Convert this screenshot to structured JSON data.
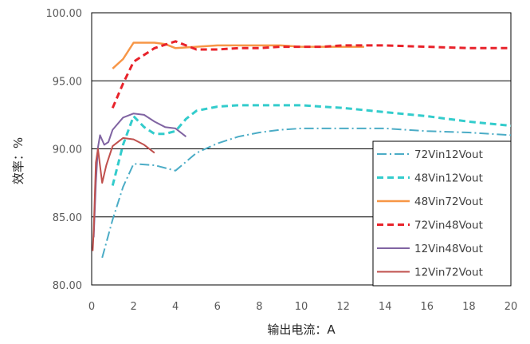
{
  "chart_data": {
    "type": "line",
    "xlabel": "输出电流：A",
    "ylabel": "效率：%",
    "xlim": [
      0,
      20
    ],
    "ylim": [
      80,
      100
    ],
    "x_ticks": [
      "0",
      "2",
      "4",
      "6",
      "8",
      "10",
      "12",
      "14",
      "16",
      "18",
      "20"
    ],
    "y_ticks": [
      "80.00",
      "85.00",
      "90.00",
      "95.00",
      "100.00"
    ],
    "grid": "horizontal",
    "legend_position": "bottom-right",
    "series": [
      {
        "name": "72Vin12Vout",
        "color": "#4BACC6",
        "dash": "dashdot",
        "width": 2,
        "x": [
          0.5,
          1.0,
          1.5,
          2.0,
          3.0,
          4.0,
          5.0,
          6.0,
          7.0,
          8.0,
          9.0,
          10.0,
          11.0,
          12.0,
          14.0,
          16.0,
          18.0,
          20.0
        ],
        "y": [
          82.0,
          84.8,
          87.2,
          88.9,
          88.8,
          88.4,
          89.7,
          90.4,
          90.9,
          91.2,
          91.4,
          91.5,
          91.5,
          91.5,
          91.5,
          91.3,
          91.2,
          91.0
        ]
      },
      {
        "name": "48Vin12Vout",
        "color": "#33CCCC",
        "dash": "dash",
        "width": 3,
        "x": [
          1.0,
          1.5,
          2.0,
          2.5,
          3.0,
          3.5,
          4.0,
          4.5,
          5.0,
          6.0,
          7.0,
          8.0,
          9.0,
          10.0,
          11.0,
          12.0,
          14.0,
          16.0,
          18.0,
          20.0
        ],
        "y": [
          87.3,
          90.3,
          92.4,
          91.6,
          91.1,
          91.1,
          91.3,
          92.2,
          92.8,
          93.1,
          93.2,
          93.2,
          93.2,
          93.2,
          93.1,
          93.0,
          92.7,
          92.4,
          92.0,
          91.7
        ]
      },
      {
        "name": "48Vin72Vout",
        "color": "#F79646",
        "dash": "solid",
        "width": 2.5,
        "x": [
          1.0,
          1.5,
          2.0,
          2.5,
          3.0,
          3.5,
          4.0,
          5.0,
          6.0,
          7.0,
          8.0,
          9.0,
          10.0,
          11.0,
          12.0,
          13.0
        ],
        "y": [
          95.9,
          96.6,
          97.8,
          97.8,
          97.8,
          97.7,
          97.4,
          97.5,
          97.6,
          97.6,
          97.6,
          97.6,
          97.5,
          97.5,
          97.5,
          97.5
        ]
      },
      {
        "name": "72Vin48Vout",
        "color": "#E8222A",
        "dash": "dash",
        "width": 3,
        "x": [
          1.0,
          1.5,
          2.0,
          3.0,
          4.0,
          4.5,
          5.0,
          6.0,
          7.0,
          8.0,
          9.0,
          10.0,
          11.0,
          12.0,
          14.0,
          16.0,
          18.0,
          20.0
        ],
        "y": [
          93.0,
          94.8,
          96.4,
          97.4,
          97.9,
          97.6,
          97.3,
          97.3,
          97.4,
          97.4,
          97.5,
          97.5,
          97.5,
          97.6,
          97.6,
          97.5,
          97.4,
          97.4
        ]
      },
      {
        "name": "12Vin48Vout",
        "color": "#8064A2",
        "dash": "solid",
        "width": 2,
        "x": [
          0.1,
          0.2,
          0.3,
          0.4,
          0.6,
          0.8,
          1.0,
          1.5,
          2.0,
          2.5,
          3.0,
          3.5,
          4.0,
          4.5
        ],
        "y": [
          83.5,
          87.5,
          90.1,
          91.0,
          90.3,
          90.5,
          91.4,
          92.3,
          92.6,
          92.5,
          92.0,
          91.6,
          91.5,
          90.9
        ]
      },
      {
        "name": "12Vin72Vout",
        "color": "#C0504D",
        "dash": "solid",
        "width": 2,
        "x": [
          0.05,
          0.1,
          0.2,
          0.3,
          0.5,
          0.7,
          1.0,
          1.5,
          2.0,
          2.5,
          3.0
        ],
        "y": [
          82.5,
          84.0,
          89.0,
          90.0,
          87.5,
          88.8,
          90.2,
          90.8,
          90.7,
          90.3,
          89.7
        ]
      }
    ]
  }
}
